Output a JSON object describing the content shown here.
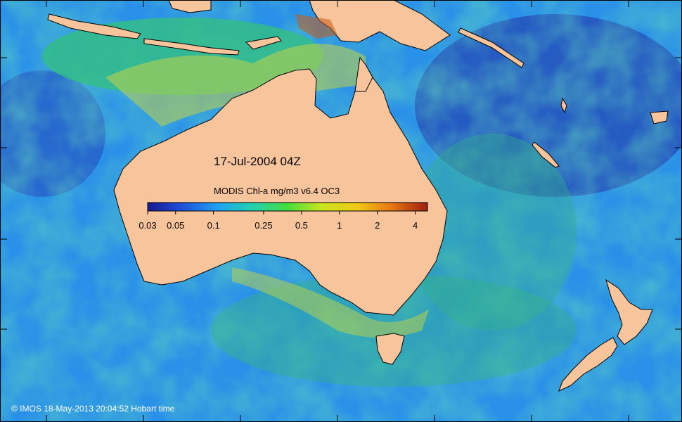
{
  "map": {
    "date_label": "17-Jul-2004 04Z",
    "colorbar_title": "MODIS Chl-a mg/m3 v6.4 OC3",
    "colorbar_ticks": [
      {
        "label": "0.03",
        "value": 0.03
      },
      {
        "label": "0.05",
        "value": 0.05
      },
      {
        "label": "0.1",
        "value": 0.1
      },
      {
        "label": "0.25",
        "value": 0.25
      },
      {
        "label": "0.5",
        "value": 0.5
      },
      {
        "label": "1",
        "value": 1
      },
      {
        "label": "2",
        "value": 2
      },
      {
        "label": "4",
        "value": 4
      }
    ],
    "colorbar_range": [
      0.03,
      5
    ],
    "colorbar_scale": "log",
    "copyright": "© IMOS 18-May-2013 20:04:52 Hobart time",
    "colors": {
      "land": "#f8c49b",
      "ocean_low": "#1a2f9e",
      "ocean_mid": "#1f8fe6",
      "ocean_high": "#2ac86a",
      "coastal": "#e6e619",
      "very_high": "#a0230f",
      "colorbar_stops": [
        "#1a1a8c",
        "#1e4fd8",
        "#1fa0f0",
        "#22d0b4",
        "#46dc3c",
        "#c8e61e",
        "#f0c814",
        "#e67814",
        "#a01e0f"
      ]
    }
  }
}
